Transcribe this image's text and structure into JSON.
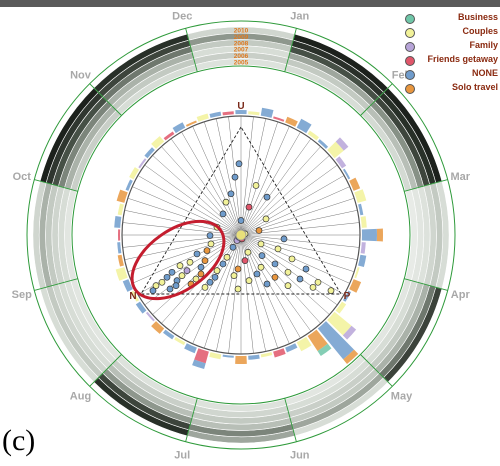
{
  "panel_label": "(c)",
  "chart_data": {
    "type": "scatter",
    "title": "",
    "months": [
      "Jan",
      "Feb",
      "Mar",
      "Apr",
      "May",
      "Jun",
      "Jul",
      "Aug",
      "Sep",
      "Oct",
      "Nov",
      "Dec"
    ],
    "years": [
      "2010",
      "2009",
      "2008",
      "2007",
      "2006",
      "2005"
    ],
    "vertices": [
      "U",
      "N",
      "P"
    ],
    "legend_position": "top-right",
    "legend": [
      {
        "name": "Business",
        "color": "#6fc6a8"
      },
      {
        "name": "Couples",
        "color": "#f2f299"
      },
      {
        "name": "Family",
        "color": "#b7a4d8"
      },
      {
        "name": "Friends getaway",
        "color": "#e0566a"
      },
      {
        "name": "NONE",
        "color": "#6f9ccc"
      },
      {
        "name": "Solo travel",
        "color": "#e8963e"
      }
    ],
    "points": [
      {
        "u": 0.78,
        "n": 0.12,
        "p": 0.1,
        "c": 4
      },
      {
        "u": 0.7,
        "n": 0.18,
        "p": 0.12,
        "c": 4
      },
      {
        "u": 0.65,
        "n": 0.1,
        "p": 0.25,
        "c": 1
      },
      {
        "u": 0.6,
        "n": 0.25,
        "p": 0.15,
        "c": 4
      },
      {
        "u": 0.58,
        "n": 0.08,
        "p": 0.34,
        "c": 4
      },
      {
        "u": 0.55,
        "n": 0.3,
        "p": 0.15,
        "c": 1
      },
      {
        "u": 0.52,
        "n": 0.2,
        "p": 0.28,
        "c": 3
      },
      {
        "u": 0.48,
        "n": 0.35,
        "p": 0.17,
        "c": 4
      },
      {
        "u": 0.45,
        "n": 0.15,
        "p": 0.4,
        "c": 1
      },
      {
        "u": 0.44,
        "n": 0.28,
        "p": 0.28,
        "c": 4
      },
      {
        "u": 0.4,
        "n": 0.42,
        "p": 0.18,
        "c": 1
      },
      {
        "u": 0.38,
        "n": 0.22,
        "p": 0.4,
        "c": 5
      },
      {
        "u": 0.36,
        "n": 0.3,
        "p": 0.34,
        "c": 1
      },
      {
        "u": 0.35,
        "n": 0.48,
        "p": 0.17,
        "c": 4
      },
      {
        "u": 0.33,
        "n": 0.12,
        "p": 0.55,
        "c": 4
      },
      {
        "u": 0.32,
        "n": 0.36,
        "p": 0.32,
        "c": 2
      },
      {
        "u": 0.3,
        "n": 0.25,
        "p": 0.45,
        "c": 1
      },
      {
        "u": 0.3,
        "n": 0.5,
        "p": 0.2,
        "c": 1
      },
      {
        "u": 0.28,
        "n": 0.4,
        "p": 0.32,
        "c": 4
      },
      {
        "u": 0.27,
        "n": 0.18,
        "p": 0.55,
        "c": 1
      },
      {
        "u": 0.26,
        "n": 0.54,
        "p": 0.2,
        "c": 5
      },
      {
        "u": 0.25,
        "n": 0.34,
        "p": 0.41,
        "c": 1
      },
      {
        "u": 0.24,
        "n": 0.6,
        "p": 0.16,
        "c": 4
      },
      {
        "u": 0.23,
        "n": 0.28,
        "p": 0.49,
        "c": 4
      },
      {
        "u": 0.22,
        "n": 0.46,
        "p": 0.32,
        "c": 1
      },
      {
        "u": 0.21,
        "n": 0.14,
        "p": 0.65,
        "c": 1
      },
      {
        "u": 0.2,
        "n": 0.58,
        "p": 0.22,
        "c": 5
      },
      {
        "u": 0.2,
        "n": 0.38,
        "p": 0.42,
        "c": 3
      },
      {
        "u": 0.19,
        "n": 0.66,
        "p": 0.15,
        "c": 1
      },
      {
        "u": 0.18,
        "n": 0.24,
        "p": 0.58,
        "c": 4
      },
      {
        "u": 0.18,
        "n": 0.5,
        "p": 0.32,
        "c": 4
      },
      {
        "u": 0.17,
        "n": 0.72,
        "p": 0.11,
        "c": 1
      },
      {
        "u": 0.16,
        "n": 0.32,
        "p": 0.52,
        "c": 1
      },
      {
        "u": 0.16,
        "n": 0.62,
        "p": 0.22,
        "c": 4
      },
      {
        "u": 0.15,
        "n": 0.44,
        "p": 0.41,
        "c": 5
      },
      {
        "u": 0.15,
        "n": 0.1,
        "p": 0.75,
        "c": 4
      },
      {
        "u": 0.14,
        "n": 0.7,
        "p": 0.16,
        "c": 2
      },
      {
        "u": 0.14,
        "n": 0.55,
        "p": 0.31,
        "c": 1
      },
      {
        "u": 0.13,
        "n": 0.2,
        "p": 0.67,
        "c": 1
      },
      {
        "u": 0.13,
        "n": 0.78,
        "p": 0.09,
        "c": 4
      },
      {
        "u": 0.12,
        "n": 0.64,
        "p": 0.24,
        "c": 5
      },
      {
        "u": 0.12,
        "n": 0.36,
        "p": 0.52,
        "c": 4
      },
      {
        "u": 0.11,
        "n": 0.74,
        "p": 0.15,
        "c": 1
      },
      {
        "u": 0.11,
        "n": 0.48,
        "p": 0.41,
        "c": 1
      },
      {
        "u": 0.1,
        "n": 0.82,
        "p": 0.08,
        "c": 4
      },
      {
        "u": 0.1,
        "n": 0.28,
        "p": 0.62,
        "c": 5
      },
      {
        "u": 0.1,
        "n": 0.58,
        "p": 0.32,
        "c": 4
      },
      {
        "u": 0.09,
        "n": 0.68,
        "p": 0.23,
        "c": 1
      },
      {
        "u": 0.09,
        "n": 0.16,
        "p": 0.75,
        "c": 4
      },
      {
        "u": 0.08,
        "n": 0.78,
        "p": 0.14,
        "c": 4
      },
      {
        "u": 0.08,
        "n": 0.42,
        "p": 0.5,
        "c": 1
      },
      {
        "u": 0.07,
        "n": 0.86,
        "p": 0.07,
        "c": 1
      },
      {
        "u": 0.07,
        "n": 0.62,
        "p": 0.31,
        "c": 4
      },
      {
        "u": 0.07,
        "n": 0.08,
        "p": 0.85,
        "c": 1
      },
      {
        "u": 0.06,
        "n": 0.72,
        "p": 0.22,
        "c": 5
      },
      {
        "u": 0.06,
        "n": 0.34,
        "p": 0.6,
        "c": 4
      },
      {
        "u": 0.05,
        "n": 0.9,
        "p": 0.05,
        "c": 1
      },
      {
        "u": 0.05,
        "n": 0.8,
        "p": 0.15,
        "c": 4
      },
      {
        "u": 0.05,
        "n": 0.24,
        "p": 0.71,
        "c": 1
      },
      {
        "u": 0.04,
        "n": 0.66,
        "p": 0.3,
        "c": 1
      },
      {
        "u": 0.04,
        "n": 0.12,
        "p": 0.84,
        "c": 1
      },
      {
        "u": 0.03,
        "n": 0.84,
        "p": 0.13,
        "c": 4
      },
      {
        "u": 0.03,
        "n": 0.5,
        "p": 0.47,
        "c": 1
      },
      {
        "u": 0.02,
        "n": 0.04,
        "p": 0.94,
        "c": 1
      },
      {
        "u": 0.02,
        "n": 0.93,
        "p": 0.05,
        "c": 4
      },
      {
        "u": 0.35,
        "n": 0.33,
        "p": 0.32,
        "c": 1
      },
      {
        "u": 0.34,
        "n": 0.34,
        "p": 0.32,
        "c": 4
      },
      {
        "u": 0.33,
        "n": 0.33,
        "p": 0.34,
        "c": 3
      }
    ],
    "highlight": "ellipse around cluster near vertex N"
  }
}
